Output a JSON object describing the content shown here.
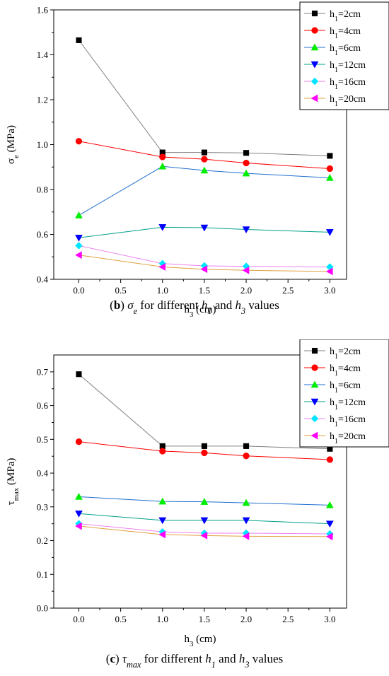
{
  "chart_data": [
    {
      "type": "line",
      "caption_label": "b",
      "caption_text": "for different and values",
      "caption_prefix": "(",
      "caption_suffix": ")",
      "caption_math": [
        "σe",
        "h1",
        "h3"
      ],
      "xlabel": "h3 (cm)",
      "ylabel": "σe (MPa)",
      "xlim": [
        -0.3,
        3.2
      ],
      "ylim": [
        0.4,
        1.6
      ],
      "xticks": [
        0.0,
        0.5,
        1.0,
        1.5,
        2.0,
        2.5,
        3.0
      ],
      "xtick_labels": [
        "0.0",
        "0.5",
        "1.0",
        "1.5",
        "2.0",
        "2.5",
        "3.0"
      ],
      "yticks": [
        0.4,
        0.6,
        0.8,
        1.0,
        1.2,
        1.4,
        1.6
      ],
      "ytick_labels": [
        "0.4",
        "0.6",
        "0.8",
        "1.0",
        "1.2",
        "1.4",
        "1.6"
      ],
      "legend_position": "top-right",
      "x": [
        0.0,
        1.0,
        1.5,
        2.0,
        3.0
      ],
      "series": [
        {
          "name": "h1=2cm",
          "color": "#000000",
          "line": "#808080",
          "marker": "square",
          "values": [
            1.465,
            0.965,
            0.965,
            0.963,
            0.95
          ]
        },
        {
          "name": "h1=4cm",
          "color": "#ff0000",
          "line": "#ff0000",
          "marker": "circle",
          "values": [
            1.015,
            0.945,
            0.935,
            0.918,
            0.893
          ]
        },
        {
          "name": "h1=6cm",
          "color": "#00ee00",
          "line": "#1f6fcf",
          "marker": "triangle-up",
          "values": [
            0.685,
            0.903,
            0.885,
            0.872,
            0.852
          ]
        },
        {
          "name": "h1=12cm",
          "color": "#0000ff",
          "line": "#00a08a",
          "marker": "triangle-down",
          "values": [
            0.585,
            0.632,
            0.63,
            0.622,
            0.61
          ]
        },
        {
          "name": "h1=16cm",
          "color": "#00e5ff",
          "line": "#ee82ee",
          "marker": "diamond",
          "values": [
            0.55,
            0.47,
            0.46,
            0.458,
            0.455
          ]
        },
        {
          "name": "h1=20cm",
          "color": "#ff00ff",
          "line": "#e0a040",
          "marker": "triangle-left",
          "values": [
            0.508,
            0.455,
            0.445,
            0.44,
            0.435
          ]
        }
      ]
    },
    {
      "type": "line",
      "caption_label": "c",
      "caption_text": "for different and values",
      "caption_prefix": "(",
      "caption_suffix": ")",
      "caption_math": [
        "τmax",
        "h1",
        "h3"
      ],
      "xlabel": "h3 (cm)",
      "ylabel": "τmax (MPa)",
      "xlim": [
        -0.3,
        3.2
      ],
      "ylim": [
        0.0,
        0.75
      ],
      "xticks": [
        0.0,
        0.5,
        1.0,
        1.5,
        2.0,
        2.5,
        3.0
      ],
      "xtick_labels": [
        "0.0",
        "0.5",
        "1.0",
        "1.5",
        "2.0",
        "2.5",
        "3.0"
      ],
      "yticks": [
        0.0,
        0.1,
        0.2,
        0.3,
        0.4,
        0.5,
        0.6,
        0.7
      ],
      "ytick_labels": [
        "0.0",
        "0.1",
        "0.2",
        "0.3",
        "0.4",
        "0.5",
        "0.6",
        "0.7"
      ],
      "legend_position": "top-right",
      "x": [
        0.0,
        1.0,
        1.5,
        2.0,
        3.0
      ],
      "series": [
        {
          "name": "h1=2cm",
          "color": "#000000",
          "line": "#808080",
          "marker": "square",
          "values": [
            0.693,
            0.48,
            0.48,
            0.48,
            0.472
          ]
        },
        {
          "name": "h1=4cm",
          "color": "#ff0000",
          "line": "#ff0000",
          "marker": "circle",
          "values": [
            0.493,
            0.465,
            0.46,
            0.451,
            0.44
          ]
        },
        {
          "name": "h1=6cm",
          "color": "#00ee00",
          "line": "#1f6fcf",
          "marker": "triangle-up",
          "values": [
            0.33,
            0.316,
            0.315,
            0.312,
            0.305
          ]
        },
        {
          "name": "h1=12cm",
          "color": "#0000ff",
          "line": "#00a08a",
          "marker": "triangle-down",
          "values": [
            0.28,
            0.26,
            0.26,
            0.26,
            0.25
          ]
        },
        {
          "name": "h1=16cm",
          "color": "#00e5ff",
          "line": "#ee82ee",
          "marker": "diamond",
          "values": [
            0.25,
            0.226,
            0.222,
            0.222,
            0.22
          ]
        },
        {
          "name": "h1=20cm",
          "color": "#ff00ff",
          "line": "#e0a040",
          "marker": "triangle-left",
          "values": [
            0.243,
            0.218,
            0.215,
            0.213,
            0.212
          ]
        }
      ]
    }
  ]
}
